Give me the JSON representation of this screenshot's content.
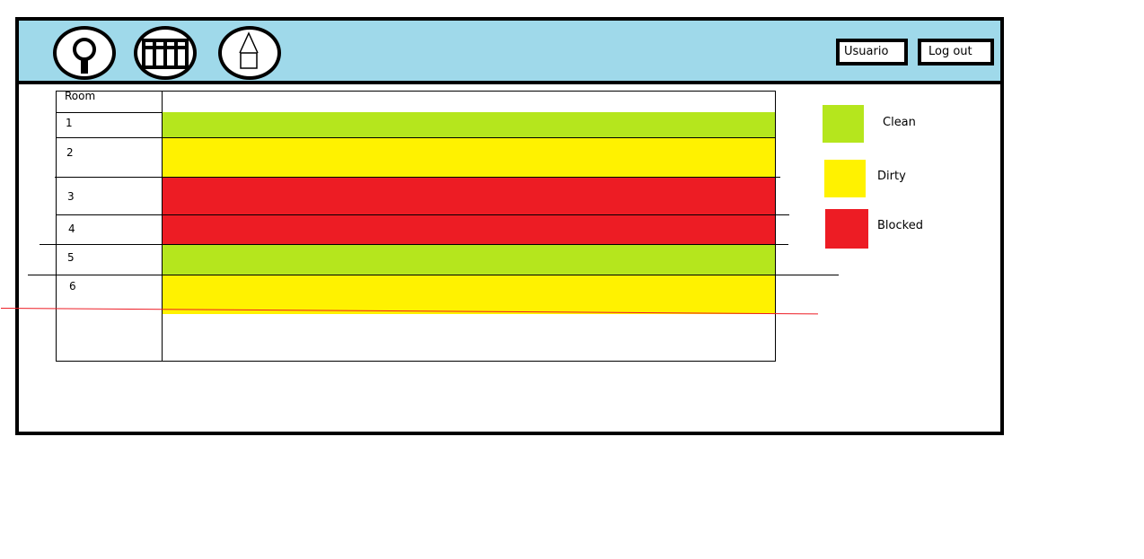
{
  "header": {
    "icons": [
      {
        "name": "search-icon"
      },
      {
        "name": "calendar-icon"
      },
      {
        "name": "house-icon"
      }
    ],
    "user_label": "Usuario",
    "logout_label": "Log out"
  },
  "grid": {
    "column_header": "Room",
    "rows": [
      {
        "room": "1",
        "status": "Clean"
      },
      {
        "room": "2",
        "status": "Dirty"
      },
      {
        "room": "3",
        "status": "Blocked"
      },
      {
        "room": "4",
        "status": "Blocked"
      },
      {
        "room": "5",
        "status": "Clean"
      },
      {
        "room": "6",
        "status": "Dirty"
      }
    ]
  },
  "legend": [
    {
      "label": "Clean",
      "color": "#b5e61d"
    },
    {
      "label": "Dirty",
      "color": "#fff200"
    },
    {
      "label": "Blocked",
      "color": "#ed1c24"
    }
  ]
}
